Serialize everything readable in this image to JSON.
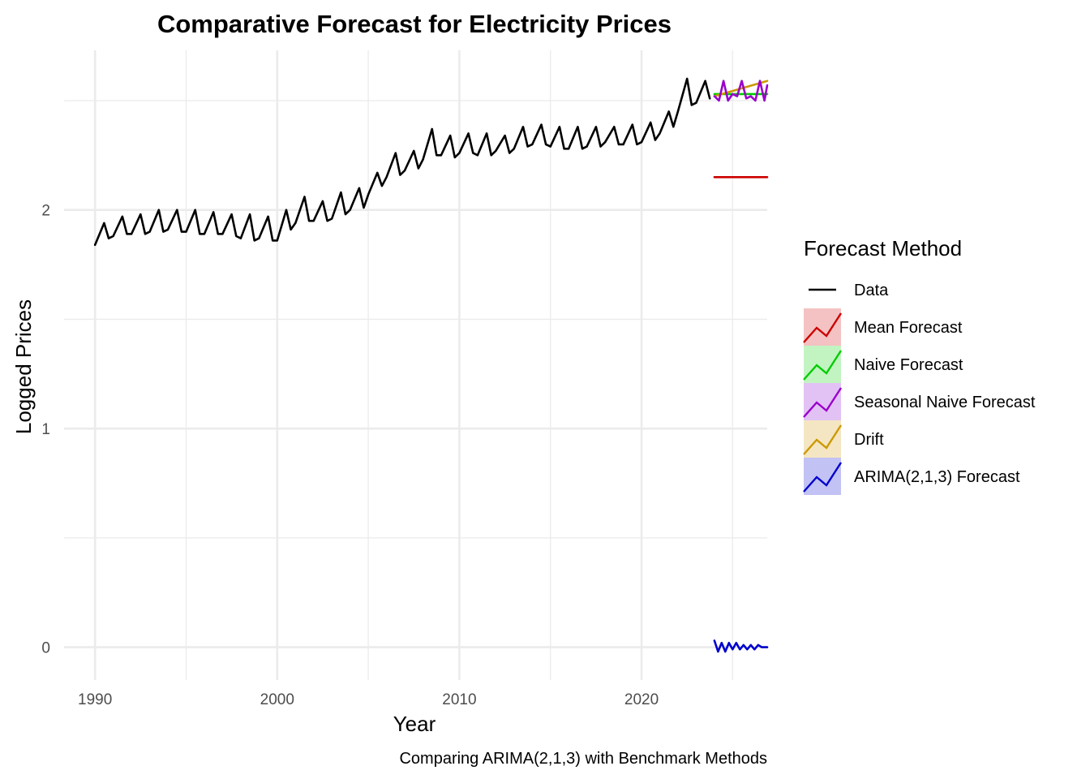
{
  "chart_data": {
    "type": "line",
    "title": "Comparative Forecast for Electricity Prices",
    "xlabel": "Year",
    "ylabel": "Logged Prices",
    "caption": "Comparing ARIMA(2,1,3) with Benchmark Methods",
    "xlim": [
      1988.3,
      2026.9
    ],
    "ylim": [
      -0.15,
      2.73
    ],
    "x_ticks": [
      1990,
      2000,
      2010,
      2020
    ],
    "y_ticks": [
      0,
      1,
      2
    ],
    "grid": true,
    "legend": {
      "title": "Forecast Method",
      "placement": "right",
      "entries": [
        {
          "label": "Data",
          "color": "#000000",
          "fill": null
        },
        {
          "label": "Mean Forecast",
          "color": "#cc0000",
          "fill": "#f4c2c2"
        },
        {
          "label": "Naive Forecast",
          "color": "#00cc00",
          "fill": "#c2f4c2"
        },
        {
          "label": "Seasonal Naive Forecast",
          "color": "#9900cc",
          "fill": "#e2c2f4"
        },
        {
          "label": "Drift",
          "color": "#cc9900",
          "fill": "#f4e6c2"
        },
        {
          "label": "ARIMA(2,1,3) Forecast",
          "color": "#0000cc",
          "fill": "#c2c2f4"
        }
      ]
    },
    "series": [
      {
        "name": "Data",
        "color": "#000000",
        "x": [
          1990.0,
          1990.5,
          1990.75,
          1991.0,
          1991.5,
          1991.75,
          1992.0,
          1992.5,
          1992.75,
          1993.0,
          1993.5,
          1993.75,
          1994.0,
          1994.5,
          1994.75,
          1995.0,
          1995.5,
          1995.75,
          1996.0,
          1996.5,
          1996.75,
          1997.0,
          1997.5,
          1997.75,
          1998.0,
          1998.5,
          1998.75,
          1999.0,
          1999.5,
          1999.75,
          2000.0,
          2000.5,
          2000.75,
          2001.0,
          2001.5,
          2001.75,
          2002.0,
          2002.5,
          2002.75,
          2003.0,
          2003.5,
          2003.75,
          2004.0,
          2004.5,
          2004.75,
          2005.0,
          2005.5,
          2005.75,
          2006.0,
          2006.5,
          2006.75,
          2007.0,
          2007.5,
          2007.75,
          2008.0,
          2008.5,
          2008.75,
          2009.0,
          2009.5,
          2009.75,
          2010.0,
          2010.5,
          2010.75,
          2011.0,
          2011.5,
          2011.75,
          2012.0,
          2012.5,
          2012.75,
          2013.0,
          2013.5,
          2013.75,
          2014.0,
          2014.5,
          2014.75,
          2015.0,
          2015.5,
          2015.75,
          2016.0,
          2016.5,
          2016.75,
          2017.0,
          2017.5,
          2017.75,
          2018.0,
          2018.5,
          2018.75,
          2019.0,
          2019.5,
          2019.75,
          2020.0,
          2020.5,
          2020.75,
          2021.0,
          2021.5,
          2021.75,
          2022.0,
          2022.5,
          2022.75,
          2023.0,
          2023.5,
          2023.75
        ],
        "y": [
          1.84,
          1.94,
          1.87,
          1.88,
          1.97,
          1.89,
          1.89,
          1.98,
          1.89,
          1.9,
          2.0,
          1.9,
          1.91,
          2.0,
          1.9,
          1.9,
          2.0,
          1.89,
          1.89,
          1.99,
          1.89,
          1.89,
          1.98,
          1.88,
          1.87,
          1.98,
          1.86,
          1.87,
          1.97,
          1.86,
          1.86,
          2.0,
          1.91,
          1.94,
          2.06,
          1.95,
          1.95,
          2.04,
          1.95,
          1.96,
          2.08,
          1.98,
          2.0,
          2.1,
          2.01,
          2.07,
          2.17,
          2.11,
          2.15,
          2.26,
          2.16,
          2.18,
          2.27,
          2.19,
          2.23,
          2.37,
          2.25,
          2.25,
          2.34,
          2.24,
          2.26,
          2.35,
          2.26,
          2.25,
          2.35,
          2.25,
          2.27,
          2.34,
          2.26,
          2.28,
          2.38,
          2.29,
          2.3,
          2.39,
          2.3,
          2.29,
          2.38,
          2.28,
          2.28,
          2.38,
          2.28,
          2.29,
          2.38,
          2.29,
          2.31,
          2.38,
          2.3,
          2.3,
          2.39,
          2.3,
          2.31,
          2.4,
          2.32,
          2.35,
          2.45,
          2.38,
          2.45,
          2.6,
          2.48,
          2.49,
          2.59,
          2.51
        ]
      },
      {
        "name": "Mean Forecast",
        "color": "#cc0000",
        "x": [
          2024.0,
          2026.9
        ],
        "y": [
          2.15,
          2.15
        ]
      },
      {
        "name": "Naive Forecast",
        "color": "#00cc00",
        "x": [
          2024.0,
          2026.9
        ],
        "y": [
          2.53,
          2.53
        ]
      },
      {
        "name": "Seasonal Naive Forecast",
        "color": "#9900cc",
        "x": [
          2024.0,
          2024.25,
          2024.5,
          2024.75,
          2025.0,
          2025.25,
          2025.5,
          2025.75,
          2026.0,
          2026.25,
          2026.5,
          2026.75,
          2026.9
        ],
        "y": [
          2.52,
          2.5,
          2.59,
          2.5,
          2.53,
          2.52,
          2.59,
          2.51,
          2.52,
          2.5,
          2.59,
          2.5,
          2.57
        ]
      },
      {
        "name": "Drift",
        "color": "#cc9900",
        "x": [
          2024.0,
          2026.9
        ],
        "y": [
          2.52,
          2.59
        ]
      },
      {
        "name": "ARIMA(2,1,3) Forecast",
        "color": "#0000cc",
        "x": [
          2024.0,
          2024.2,
          2024.4,
          2024.6,
          2024.8,
          2025.0,
          2025.2,
          2025.4,
          2025.6,
          2025.8,
          2026.0,
          2026.2,
          2026.4,
          2026.6,
          2026.9
        ],
        "y": [
          0.03,
          -0.02,
          0.02,
          -0.02,
          0.02,
          -0.01,
          0.02,
          -0.01,
          0.01,
          -0.01,
          0.01,
          -0.01,
          0.01,
          0.0,
          0.0
        ]
      }
    ]
  }
}
